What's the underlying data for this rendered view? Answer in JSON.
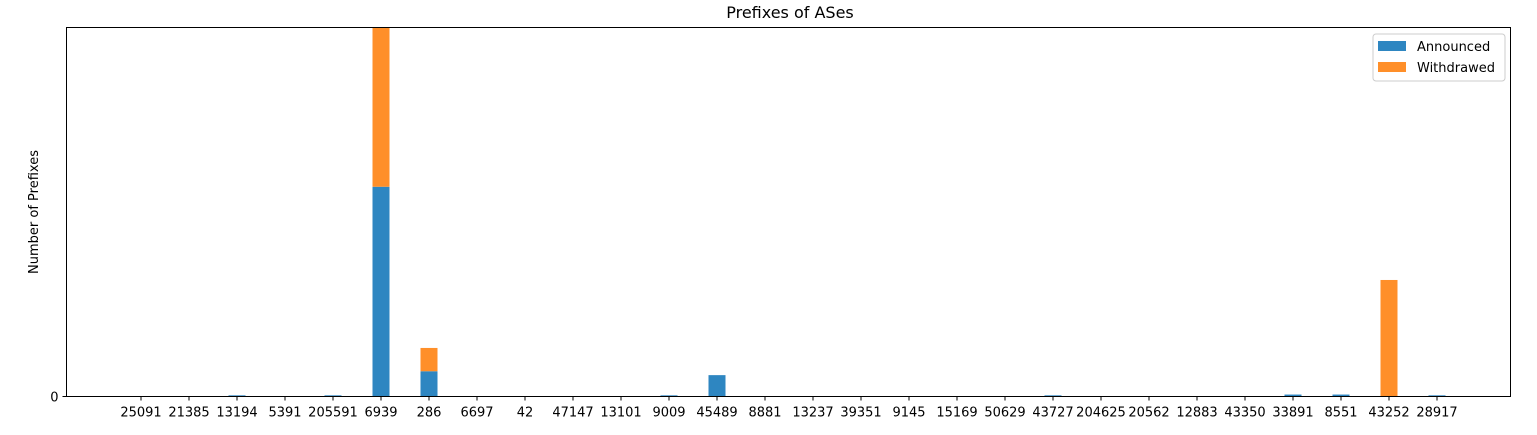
{
  "chart_data": {
    "type": "bar",
    "stacked": true,
    "title": "Prefixes of ASes",
    "xlabel": "",
    "ylabel": "Number of Prefixes",
    "ylim": [
      0,
      190
    ],
    "yticks": [
      0
    ],
    "grid": false,
    "legend_position": "top-right",
    "categories": [
      "25091",
      "21385",
      "13194",
      "5391",
      "205591",
      "6939",
      "286",
      "6697",
      "42",
      "47147",
      "13101",
      "9009",
      "45489",
      "8881",
      "13237",
      "39351",
      "9145",
      "15169",
      "50629",
      "43727",
      "204625",
      "20562",
      "12883",
      "43350",
      "33891",
      "8551",
      "43252",
      "28917"
    ],
    "series": [
      {
        "name": "Announced",
        "color": "#2e86c1",
        "values": [
          0,
          0,
          0.6,
          0,
          0.6,
          108,
          13,
          0,
          0,
          0,
          0,
          0.6,
          11,
          0,
          0,
          0,
          0,
          0,
          0,
          0.6,
          0,
          0,
          0,
          0,
          1,
          1,
          0,
          0.6
        ]
      },
      {
        "name": "Withdrawed",
        "color": "#ff8f29",
        "values": [
          0,
          0,
          0,
          0,
          0,
          82,
          12,
          0,
          0,
          0,
          0,
          0,
          0,
          0,
          0,
          0,
          0,
          0,
          0,
          0,
          0,
          0,
          0,
          0,
          0,
          0,
          60,
          0
        ]
      }
    ]
  }
}
